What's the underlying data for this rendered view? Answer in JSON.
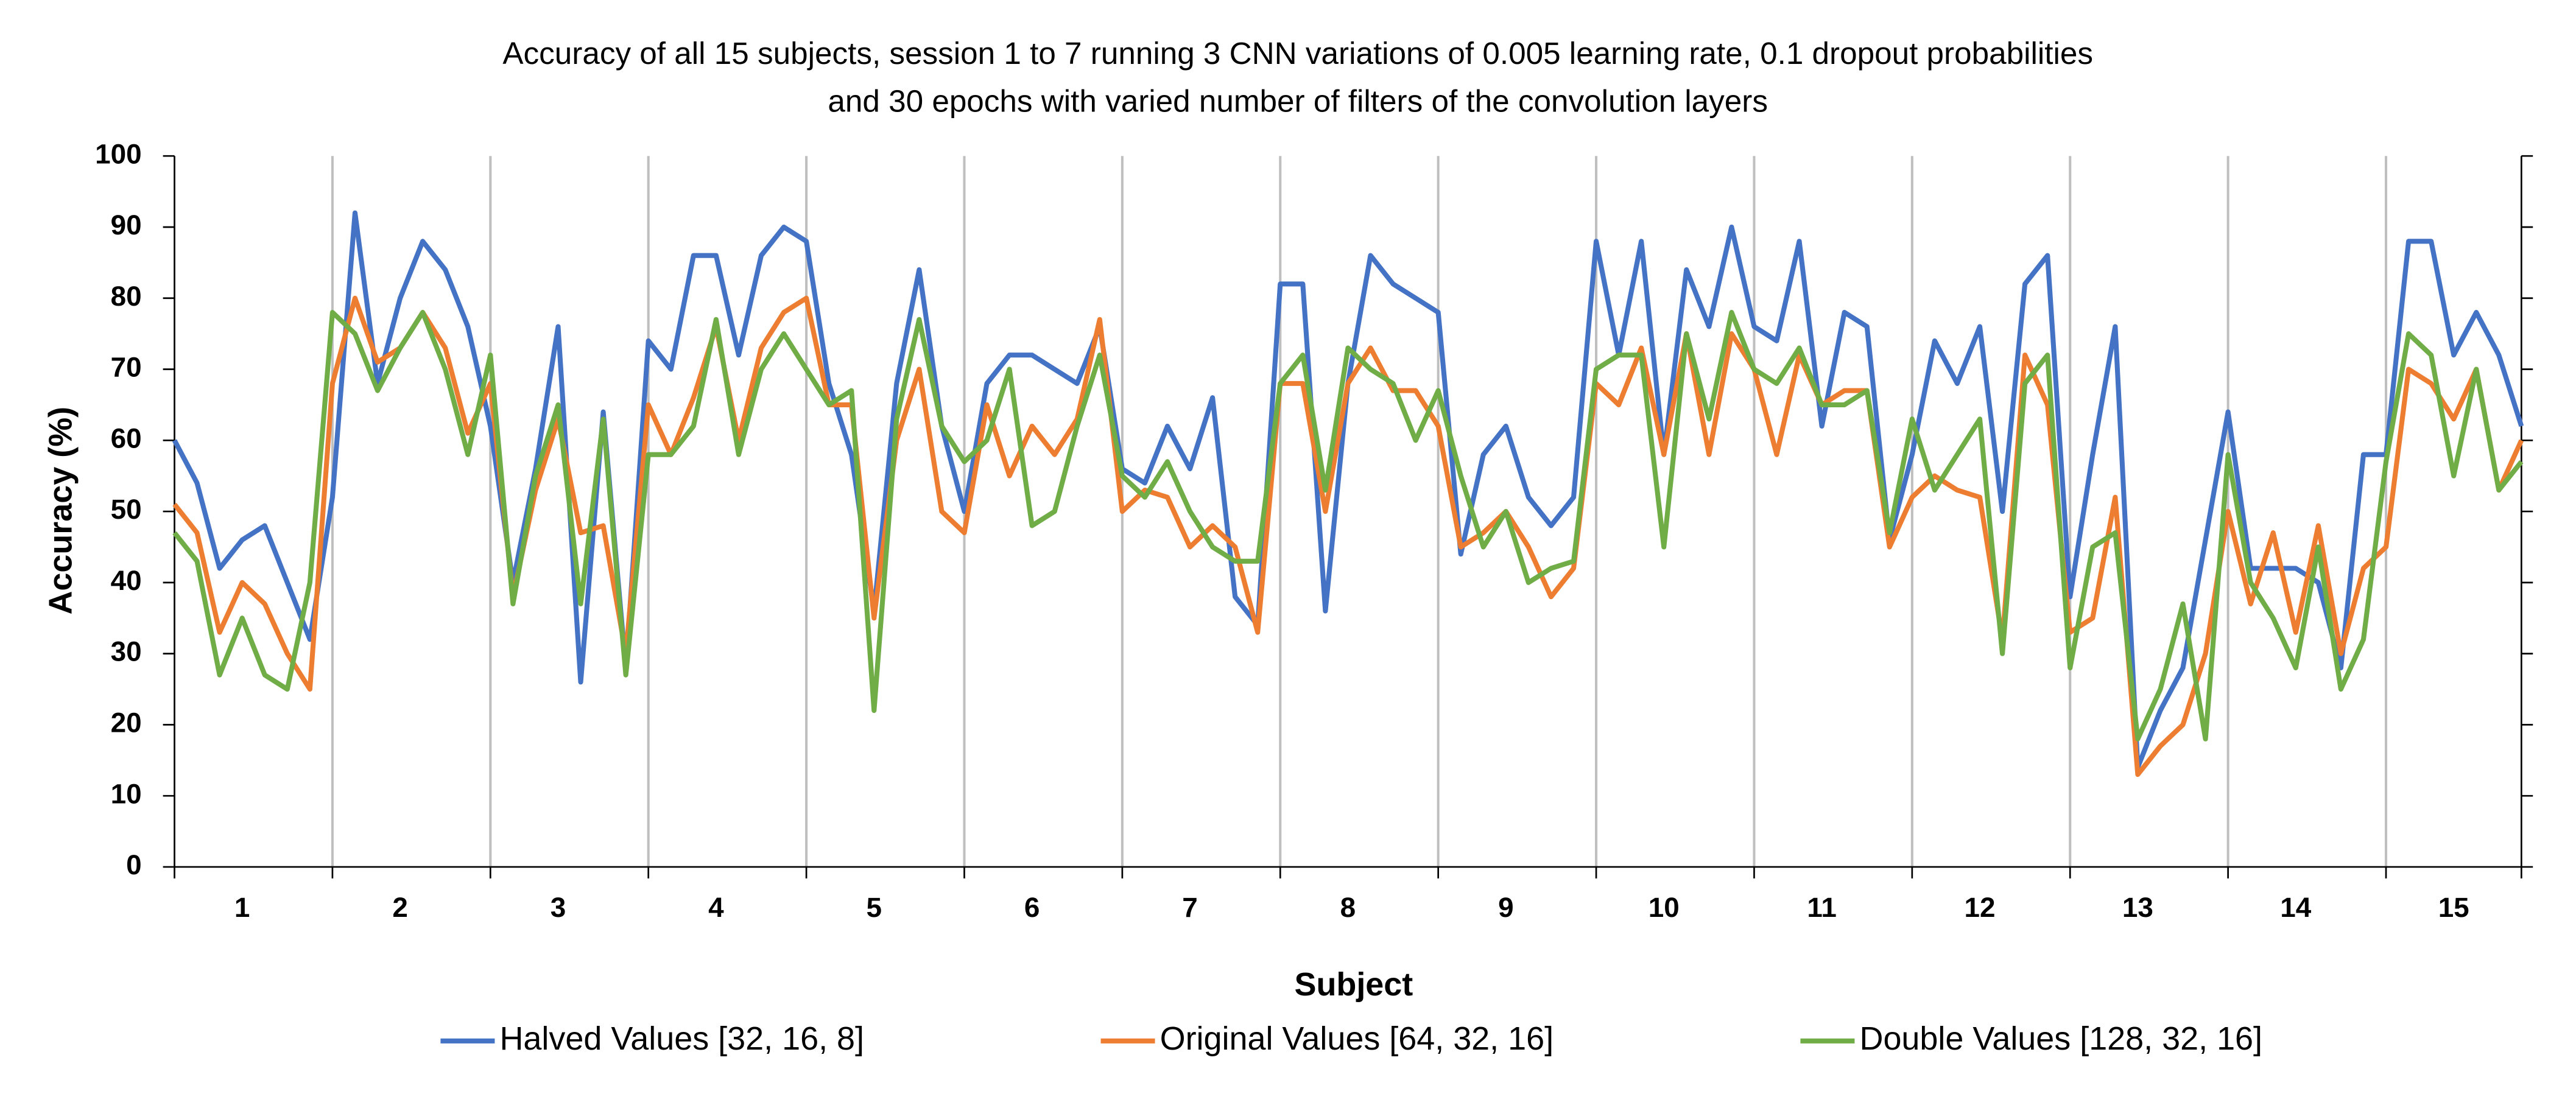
{
  "chart_data": {
    "type": "line",
    "title": [
      "Accuracy of all 15 subjects, session 1 to 7 running 3 CNN variations of 0.005 learning rate, 0.1 dropout probabilities",
      "and 30 epochs with varied number of filters of the convolution layers"
    ],
    "x_label": "Subject",
    "y_label": "Accuracy (%)",
    "categories": [
      null,
      null,
      null,
      "1",
      null,
      null,
      null,
      null,
      null,
      null,
      "2",
      null,
      null,
      null,
      null,
      null,
      null,
      "3",
      null,
      null,
      null,
      null,
      null,
      null,
      "4",
      null,
      null,
      null,
      null,
      null,
      null,
      "5",
      null,
      null,
      null,
      null,
      null,
      null,
      "6",
      null,
      null,
      null,
      null,
      null,
      null,
      "7",
      null,
      null,
      null,
      null,
      null,
      null,
      "8",
      null,
      null,
      null,
      null,
      null,
      null,
      "9",
      null,
      null,
      null,
      null,
      null,
      null,
      "10",
      null,
      null,
      null,
      null,
      null,
      null,
      "11",
      null,
      null,
      null,
      null,
      null,
      null,
      "12",
      null,
      null,
      null,
      null,
      null,
      null,
      "13",
      null,
      null,
      null,
      null,
      null,
      null,
      "14",
      null,
      null,
      null,
      null,
      null,
      null,
      "15",
      null,
      null,
      null
    ],
    "series": [
      {
        "name": "Halved Values [32, 16, 8]",
        "color": "#4472c4",
        "values": [
          60,
          54,
          42,
          46,
          48,
          40,
          32,
          52,
          92,
          68,
          80,
          88,
          84,
          76,
          62,
          40,
          56,
          76,
          26,
          64,
          28,
          74,
          70,
          86,
          86,
          72,
          86,
          90,
          88,
          68,
          58,
          36,
          68,
          84,
          62,
          50,
          68,
          72,
          72,
          70,
          68,
          76,
          56,
          54,
          62,
          56,
          66,
          38,
          34,
          82,
          82,
          36,
          68,
          86,
          82,
          80,
          78,
          44,
          58,
          62,
          52,
          48,
          52,
          88,
          72,
          88,
          58,
          84,
          76,
          90,
          76,
          74,
          88,
          62,
          78,
          76,
          46,
          58,
          74,
          68,
          76,
          50,
          82,
          86,
          38,
          58,
          76,
          14,
          22,
          28,
          46,
          64,
          42,
          42,
          42,
          40,
          28,
          58,
          58,
          88,
          88,
          72,
          78,
          72,
          62
        ]
      },
      {
        "name": "Original Values [64, 32, 16]",
        "color": "#ed7d31",
        "values": [
          51,
          47,
          33,
          40,
          37,
          30,
          25,
          68,
          80,
          71,
          73,
          78,
          73,
          61,
          68,
          38,
          53,
          63,
          47,
          48,
          30,
          65,
          58,
          66,
          76,
          60,
          73,
          78,
          80,
          65,
          65,
          35,
          60,
          70,
          50,
          47,
          65,
          55,
          62,
          58,
          63,
          77,
          50,
          53,
          52,
          45,
          48,
          45,
          33,
          68,
          68,
          50,
          68,
          73,
          67,
          67,
          62,
          45,
          47,
          50,
          45,
          38,
          42,
          68,
          65,
          73,
          58,
          75,
          58,
          75,
          70,
          58,
          72,
          65,
          67,
          67,
          45,
          52,
          55,
          53,
          52,
          32,
          72,
          65,
          33,
          35,
          52,
          13,
          17,
          20,
          30,
          50,
          37,
          47,
          33,
          48,
          30,
          42,
          45,
          70,
          68,
          63,
          70,
          53,
          60
        ]
      },
      {
        "name": "Double Values [128, 32, 16]",
        "color": "#70ad47",
        "values": [
          47,
          43,
          27,
          35,
          27,
          25,
          40,
          78,
          75,
          67,
          73,
          78,
          70,
          58,
          72,
          37,
          55,
          65,
          37,
          63,
          27,
          58,
          58,
          62,
          77,
          58,
          70,
          75,
          70,
          65,
          67,
          22,
          63,
          77,
          62,
          57,
          60,
          70,
          48,
          50,
          62,
          72,
          55,
          52,
          57,
          50,
          45,
          43,
          43,
          68,
          72,
          53,
          73,
          70,
          68,
          60,
          67,
          55,
          45,
          50,
          40,
          42,
          43,
          70,
          72,
          72,
          45,
          75,
          63,
          78,
          70,
          68,
          73,
          65,
          65,
          67,
          47,
          63,
          53,
          58,
          63,
          30,
          68,
          72,
          28,
          45,
          47,
          18,
          25,
          37,
          18,
          58,
          40,
          35,
          28,
          45,
          25,
          32,
          57,
          75,
          72,
          55,
          70,
          53,
          57
        ]
      }
    ],
    "ylim": [
      0,
      100
    ],
    "yticks": [
      0,
      10,
      20,
      30,
      40,
      50,
      60,
      70,
      80,
      90,
      100
    ],
    "legend": "bottom"
  }
}
